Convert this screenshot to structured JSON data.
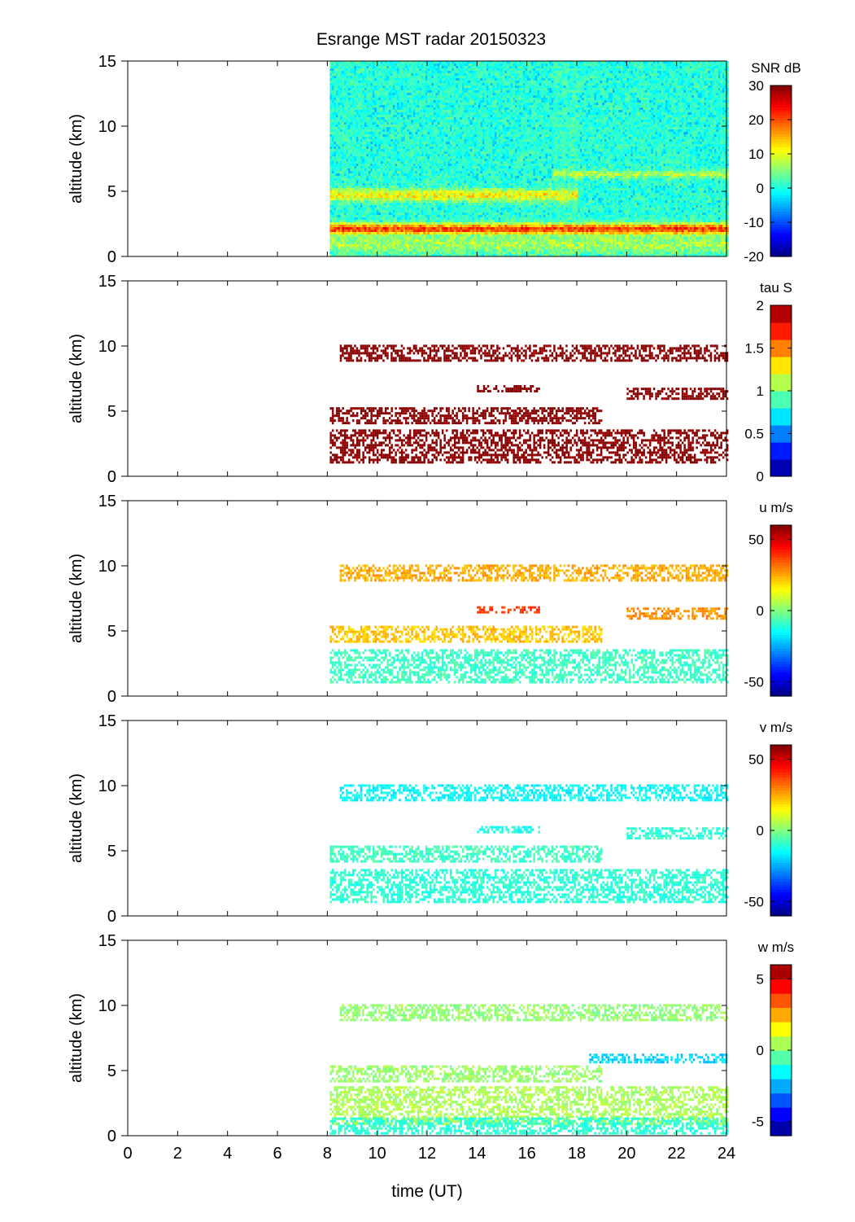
{
  "chart_data": {
    "type": "heatmap",
    "title": "Esrange MST radar 20150323",
    "xlabel": "time (UT)",
    "xlim": [
      0,
      24
    ],
    "xticks": [
      0,
      2,
      4,
      6,
      8,
      10,
      12,
      14,
      16,
      18,
      20,
      22,
      24
    ],
    "panels": [
      {
        "name": "snr",
        "ylabel": "altitude (km)",
        "ylim": [
          0,
          15
        ],
        "yticks": [
          0,
          5,
          10,
          15
        ],
        "colorbar_label": "SNR dB",
        "clim": [
          -20,
          30
        ],
        "colorbar_ticks": [
          -20,
          -10,
          0,
          10,
          20,
          30
        ],
        "colormap": "jet",
        "data_start_hour": 8.1,
        "layers": [
          {
            "t0": 8.1,
            "t1": 24,
            "altitude": 2.2,
            "width": 0.5,
            "value": 25
          },
          {
            "t0": 8.1,
            "t1": 24,
            "altitude": 1.0,
            "width": 0.8,
            "value": 8
          },
          {
            "t0": 8.1,
            "t1": 18,
            "altitude": 4.8,
            "width": 0.5,
            "value": 12
          },
          {
            "t0": 17,
            "t1": 24,
            "altitude": 6.4,
            "width": 0.3,
            "value": 8
          }
        ]
      },
      {
        "name": "tau",
        "ylabel": "altitude (km)",
        "ylim": [
          0,
          15
        ],
        "yticks": [
          0,
          5,
          10,
          15
        ],
        "colorbar_label": "tau S",
        "clim": [
          0,
          2
        ],
        "colorbar_ticks": [
          0,
          0.5,
          1,
          1.5,
          2
        ],
        "colorbar_steps": 10,
        "colormap": "jet",
        "layers": [
          {
            "t0": 8.1,
            "t1": 19.0,
            "altitude": 4.7,
            "width": 0.6,
            "value": 2.0
          },
          {
            "t0": 8.1,
            "t1": 24,
            "altitude": 2.3,
            "width": 1.3,
            "value": 2.0
          },
          {
            "t0": 14,
            "t1": 16.5,
            "altitude": 6.8,
            "width": 0.2,
            "value": 2.0
          },
          {
            "t0": 20,
            "t1": 24,
            "altitude": 6.4,
            "width": 0.4,
            "value": 2.0
          },
          {
            "t0": 8.5,
            "t1": 24,
            "altitude": 9.5,
            "width": 0.6,
            "value": 2.0
          }
        ]
      },
      {
        "name": "u",
        "ylabel": "altitude (km)",
        "ylim": [
          0,
          15
        ],
        "yticks": [
          0,
          5,
          10,
          15
        ],
        "colorbar_label": "u m/s",
        "clim": [
          -60,
          60
        ],
        "colorbar_ticks": [
          -50,
          0,
          50
        ],
        "colormap": "jet",
        "layers": [
          {
            "t0": 8.1,
            "t1": 19.0,
            "altitude": 4.8,
            "width": 0.6,
            "value": 22
          },
          {
            "t0": 8.1,
            "t1": 24,
            "altitude": 2.3,
            "width": 1.3,
            "value": -8
          },
          {
            "t0": 14,
            "t1": 16.5,
            "altitude": 6.7,
            "width": 0.2,
            "value": 38
          },
          {
            "t0": 20,
            "t1": 24,
            "altitude": 6.4,
            "width": 0.4,
            "value": 28
          },
          {
            "t0": 8.5,
            "t1": 24,
            "altitude": 9.5,
            "width": 0.6,
            "value": 25
          }
        ]
      },
      {
        "name": "v",
        "ylabel": "altitude (km)",
        "ylim": [
          0,
          15
        ],
        "yticks": [
          0,
          5,
          10,
          15
        ],
        "colorbar_label": "v m/s",
        "clim": [
          -60,
          60
        ],
        "colorbar_ticks": [
          -50,
          0,
          50
        ],
        "colormap": "jet",
        "layers": [
          {
            "t0": 8.1,
            "t1": 19.0,
            "altitude": 4.8,
            "width": 0.6,
            "value": -8
          },
          {
            "t0": 8.1,
            "t1": 24,
            "altitude": 2.3,
            "width": 1.3,
            "value": -10
          },
          {
            "t0": 14,
            "t1": 16.5,
            "altitude": 6.7,
            "width": 0.2,
            "value": -12
          },
          {
            "t0": 20,
            "t1": 24,
            "altitude": 6.4,
            "width": 0.4,
            "value": -10
          },
          {
            "t0": 8.5,
            "t1": 24,
            "altitude": 9.5,
            "width": 0.6,
            "value": -15
          }
        ]
      },
      {
        "name": "w",
        "ylabel": "altitude (km)",
        "ylim": [
          0,
          15
        ],
        "yticks": [
          0,
          5,
          10,
          15
        ],
        "colorbar_label": "w m/s",
        "clim": [
          -6,
          6
        ],
        "colorbar_ticks": [
          -5,
          0,
          5
        ],
        "colorbar_steps": 12,
        "colormap": "jet",
        "layers": [
          {
            "t0": 8.1,
            "t1": 19.0,
            "altitude": 4.8,
            "width": 0.6,
            "value": 0.3
          },
          {
            "t0": 8.1,
            "t1": 24,
            "altitude": 2.3,
            "width": 1.5,
            "value": 0.5
          },
          {
            "t0": 8.1,
            "t1": 24,
            "altitude": 0.8,
            "width": 0.6,
            "value": -1.0
          },
          {
            "t0": 18.5,
            "t1": 24,
            "altitude": 6.0,
            "width": 0.3,
            "value": -2.0
          },
          {
            "t0": 8.5,
            "t1": 24,
            "altitude": 9.5,
            "width": 0.6,
            "value": 0.2
          }
        ]
      }
    ]
  }
}
